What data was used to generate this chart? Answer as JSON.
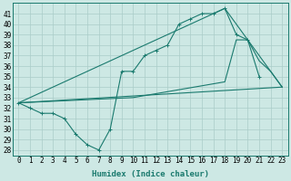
{
  "title": "",
  "xlabel": "Humidex (Indice chaleur)",
  "bg_color": "#cde8e4",
  "grid_color": "#aaccc8",
  "line_color": "#1a7a6e",
  "xlim": [
    -0.5,
    23.5
  ],
  "ylim": [
    27.5,
    42.0
  ],
  "xticks": [
    0,
    1,
    2,
    3,
    4,
    5,
    6,
    7,
    8,
    9,
    10,
    11,
    12,
    13,
    14,
    15,
    16,
    17,
    18,
    19,
    20,
    21,
    22,
    23
  ],
  "yticks": [
    28,
    29,
    30,
    31,
    32,
    33,
    34,
    35,
    36,
    37,
    38,
    39,
    40,
    41
  ],
  "series1_x": [
    0,
    1,
    2,
    3,
    4,
    5,
    6,
    7,
    8,
    9,
    10,
    11,
    12,
    13,
    14,
    15,
    16,
    17,
    18,
    19,
    20,
    21
  ],
  "series1_y": [
    32.5,
    32.0,
    31.5,
    31.5,
    31.0,
    29.5,
    28.5,
    28.0,
    30.0,
    35.5,
    35.5,
    37.0,
    37.5,
    38.0,
    40.0,
    40.5,
    41.0,
    41.0,
    41.5,
    39.0,
    38.5,
    35.0
  ],
  "series1_markers_x": [
    0,
    1,
    2,
    3,
    4,
    5,
    6,
    7,
    8,
    9,
    11,
    12,
    13,
    14,
    15,
    16,
    17,
    18,
    19,
    20,
    21
  ],
  "series1_markers_y": [
    32.5,
    32.0,
    31.5,
    31.5,
    31.0,
    29.5,
    28.5,
    28.0,
    30.0,
    35.5,
    37.0,
    37.5,
    38.0,
    40.0,
    40.5,
    41.0,
    41.0,
    41.5,
    39.0,
    38.5,
    35.0
  ],
  "series2_x": [
    0,
    23
  ],
  "series2_y": [
    32.5,
    34.0
  ],
  "series3_x": [
    0,
    18,
    23
  ],
  "series3_y": [
    32.5,
    41.5,
    34.0
  ],
  "series4_x": [
    0,
    10,
    18,
    19,
    20,
    21,
    22,
    23
  ],
  "series4_y": [
    32.5,
    33.0,
    34.5,
    38.5,
    38.5,
    36.5,
    35.5,
    34.0
  ],
  "font_size_tick": 5.5,
  "font_size_label": 6.5
}
